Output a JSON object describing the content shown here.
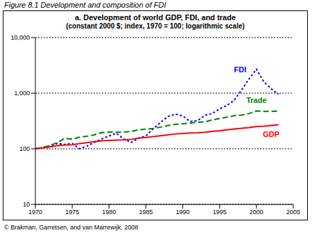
{
  "chart_data": {
    "type": "line",
    "figure_title": "Figure 8.1 Development and composition of FDI",
    "title": "a. Development of world GDP, FDI, and trade",
    "subtitle": "(constant 2000 $; index, 1970 = 100; logarithmic scale)",
    "source": "© Brakman, Garretsen, and van Marrewijk, 2008",
    "x": [
      1970,
      1971,
      1972,
      1973,
      1974,
      1975,
      1976,
      1977,
      1978,
      1979,
      1980,
      1981,
      1982,
      1983,
      1984,
      1985,
      1986,
      1987,
      1988,
      1989,
      1990,
      1991,
      1992,
      1993,
      1994,
      1995,
      1996,
      1997,
      1998,
      1999,
      2000,
      2001,
      2002,
      2003
    ],
    "series": [
      {
        "name": "FDI",
        "color": "#0000ff",
        "line_style": "dotted",
        "values": [
          100,
          105,
          112,
          125,
          120,
          125,
          100,
          112,
          130,
          150,
          170,
          190,
          150,
          130,
          155,
          170,
          230,
          300,
          380,
          420,
          390,
          310,
          320,
          400,
          430,
          520,
          600,
          750,
          1150,
          1800,
          2700,
          1600,
          1200,
          950
        ]
      },
      {
        "name": "Trade",
        "color": "#008000",
        "line_style": "dashed",
        "values": [
          100,
          106,
          115,
          130,
          155,
          148,
          162,
          168,
          178,
          195,
          200,
          198,
          200,
          205,
          220,
          225,
          232,
          245,
          262,
          275,
          282,
          290,
          300,
          305,
          330,
          350,
          370,
          395,
          405,
          430,
          480,
          470,
          470,
          480
        ]
      },
      {
        "name": "GDP",
        "color": "#ff0000",
        "line_style": "solid",
        "values": [
          100,
          104,
          108,
          114,
          117,
          118,
          124,
          129,
          134,
          139,
          141,
          143,
          144,
          148,
          155,
          160,
          165,
          171,
          178,
          185,
          189,
          192,
          194,
          198,
          205,
          211,
          219,
          227,
          233,
          241,
          251,
          255,
          262,
          270
        ]
      }
    ],
    "xlim": [
      1970,
      2005
    ],
    "xticks": [
      1970,
      1975,
      1980,
      1985,
      1990,
      1995,
      2000,
      2005
    ],
    "ylim": [
      10,
      10000
    ],
    "yticks": [
      10,
      100,
      {
        "value": 1000,
        "label": "1,000"
      },
      {
        "value": 10000,
        "label": "10,000"
      }
    ],
    "log": "y",
    "grid": true
  }
}
